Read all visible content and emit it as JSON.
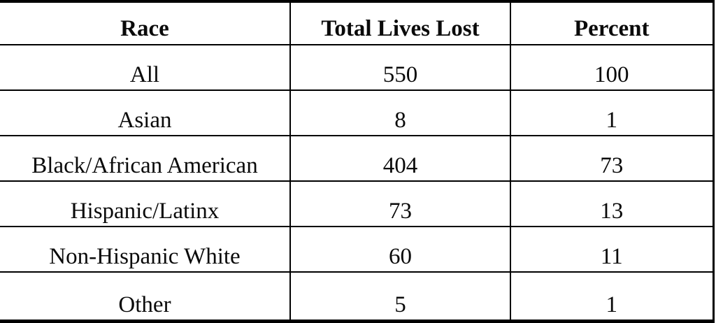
{
  "colors": {
    "background": "#ffffff",
    "border": "#000000",
    "text": "#0a0a0a"
  },
  "chart_data": {
    "type": "table",
    "title": "",
    "columns": [
      "Race",
      "Total Lives Lost",
      "Percent"
    ],
    "rows": [
      [
        "All",
        "550",
        "100"
      ],
      [
        "Asian",
        "8",
        "1"
      ],
      [
        "Black/African American",
        "404",
        "73"
      ],
      [
        "Hispanic/Latinx",
        "73",
        "13"
      ],
      [
        "Non-Hispanic White",
        "60",
        "11"
      ],
      [
        "Other",
        "5",
        "1"
      ]
    ]
  }
}
